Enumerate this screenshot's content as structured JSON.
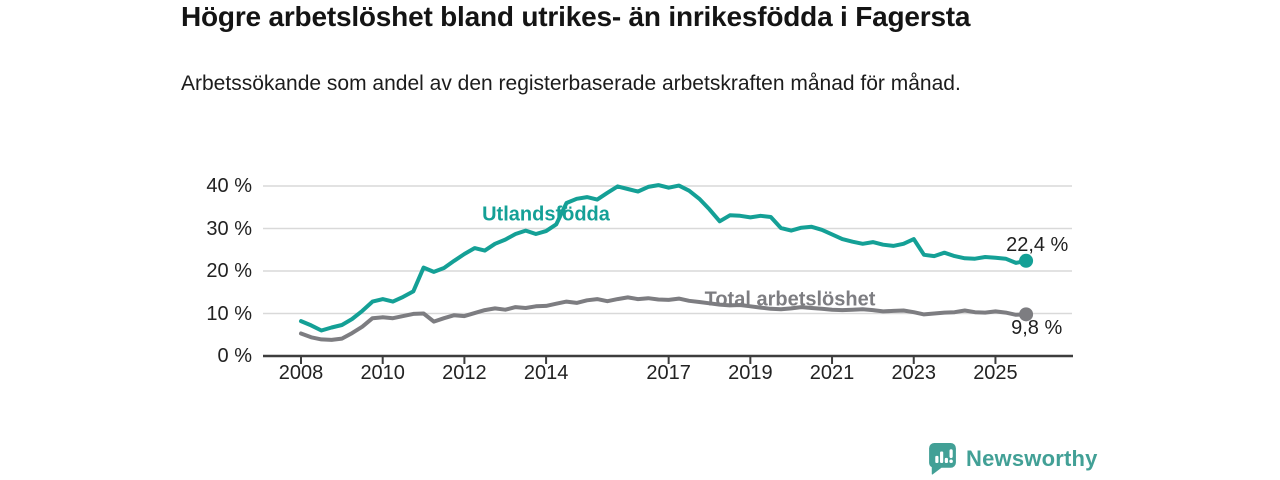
{
  "header": {
    "title": "Högre arbetslöshet bland utrikes- än inrikesfödda i Fagersta",
    "subtitle": "Arbetssökande som andel av den registerbaserade arbetskraften månad för månad."
  },
  "footer": {
    "brand": "Newsworthy",
    "logo_icon": "newsworthy-bar-chart-bubble-icon"
  },
  "colors": {
    "series_foreign_born": "#14a096",
    "series_total": "#7d7d81",
    "gridline": "#d9d9d9",
    "axis": "#3d3d3d",
    "tick_text": "#222222",
    "value_label_text": "#1f1f1f",
    "brand_teal": "#42a096",
    "title_text": "#141414"
  },
  "chart_data": {
    "type": "line",
    "title": "Högre arbetslöshet bland utrikes- än inrikesfödda i Fagersta",
    "xlabel": "",
    "ylabel": "",
    "grid": true,
    "x_start_year": 2008,
    "x_step_years": 0.25,
    "x_ticks": [
      2008,
      2010,
      2012,
      2014,
      2017,
      2019,
      2021,
      2023,
      2025
    ],
    "y_ticks": [
      0,
      10,
      20,
      30,
      40
    ],
    "y_tick_suffix": " %",
    "ylim": [
      0,
      42
    ],
    "series": [
      {
        "name": "Utlandsfödda",
        "color": "#14a096",
        "end_label": "22,4 %",
        "end_value": 22.4,
        "values": [
          8.2,
          7.2,
          6.0,
          6.7,
          7.3,
          8.7,
          10.6,
          12.8,
          13.4,
          12.8,
          13.9,
          15.2,
          20.8,
          19.8,
          20.7,
          22.4,
          24.0,
          25.4,
          24.8,
          26.4,
          27.4,
          28.7,
          29.5,
          28.7,
          29.4,
          31.0,
          36.0,
          37.0,
          37.4,
          36.8,
          38.4,
          39.9,
          39.3,
          38.7,
          39.8,
          40.2,
          39.6,
          40.1,
          38.9,
          37.0,
          34.5,
          31.7,
          33.1,
          33.0,
          32.6,
          33.0,
          32.7,
          30.1,
          29.5,
          30.2,
          30.4,
          29.7,
          28.6,
          27.5,
          26.9,
          26.4,
          26.8,
          26.2,
          25.9,
          26.4,
          27.5,
          23.8,
          23.5,
          24.3,
          23.5,
          23.0,
          22.9,
          23.3,
          23.1,
          22.9,
          21.9,
          22.4
        ]
      },
      {
        "name": "Total arbetslöshet",
        "color": "#7d7d81",
        "end_label": "9,8 %",
        "end_value": 9.8,
        "values": [
          5.3,
          4.4,
          3.9,
          3.8,
          4.1,
          5.4,
          6.9,
          8.9,
          9.1,
          8.9,
          9.4,
          9.9,
          10.0,
          8.1,
          8.9,
          9.6,
          9.4,
          10.1,
          10.8,
          11.2,
          10.9,
          11.5,
          11.3,
          11.7,
          11.8,
          12.3,
          12.8,
          12.5,
          13.1,
          13.4,
          12.9,
          13.4,
          13.8,
          13.4,
          13.6,
          13.3,
          13.2,
          13.5,
          13.0,
          12.7,
          12.4,
          12.1,
          11.9,
          12.0,
          11.7,
          11.4,
          11.1,
          11.0,
          11.2,
          11.5,
          11.3,
          11.1,
          10.9,
          10.8,
          10.9,
          11.0,
          10.8,
          10.5,
          10.6,
          10.7,
          10.3,
          9.8,
          10.0,
          10.2,
          10.3,
          10.7,
          10.3,
          10.2,
          10.5,
          10.2,
          9.7,
          9.8
        ]
      }
    ],
    "legend_position": "inline-labels"
  }
}
